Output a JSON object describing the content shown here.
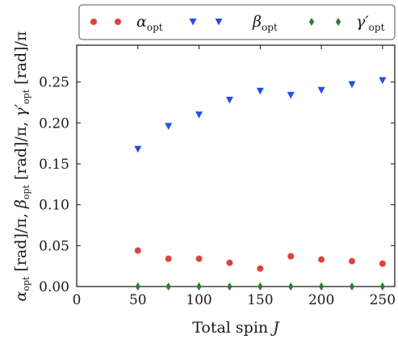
{
  "chart_data": {
    "type": "scatter",
    "xlabel": "Total spin J",
    "ylabel": "α_opt [rad]/π, β_opt [rad]/π, γ′_opt [rad]/π",
    "xlim": [
      0,
      260
    ],
    "ylim": [
      0,
      0.295
    ],
    "x_ticks": [
      0,
      50,
      100,
      150,
      200,
      250
    ],
    "y_ticks": [
      0.0,
      0.05,
      0.1,
      0.15,
      0.2,
      0.25
    ],
    "x_tick_labels": [
      "0",
      "50",
      "100",
      "150",
      "200",
      "250"
    ],
    "y_tick_labels": [
      "0.00",
      "0.05",
      "0.10",
      "0.15",
      "0.20",
      "0.25"
    ],
    "legend_placement": "top, outside plot",
    "grid": false,
    "x": [
      50,
      75,
      100,
      125,
      150,
      175,
      200,
      225,
      250
    ],
    "series": [
      {
        "name": "α_opt",
        "marker": "circle",
        "color": "#e0413a",
        "values": [
          0.044,
          0.034,
          0.034,
          0.029,
          0.022,
          0.037,
          0.033,
          0.031,
          0.028
        ]
      },
      {
        "name": "β_opt",
        "marker": "triangle-down",
        "color": "#1f4fe8",
        "values": [
          0.168,
          0.196,
          0.21,
          0.228,
          0.239,
          0.234,
          0.24,
          0.247,
          0.252
        ]
      },
      {
        "name": "γ′_opt",
        "marker": "diamond",
        "color": "#2e7d32",
        "values": [
          0.0,
          0.0,
          0.0,
          0.0,
          0.0,
          0.0,
          0.0,
          0.0,
          0.0
        ]
      }
    ]
  }
}
